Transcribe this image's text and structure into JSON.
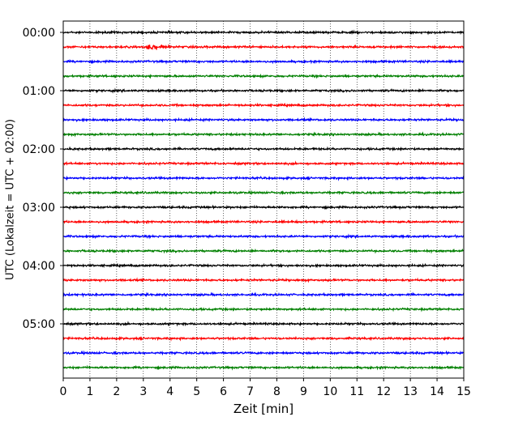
{
  "chart_data": {
    "type": "line",
    "title": "",
    "xlabel": "Zeit  [min]",
    "ylabel": "UTC (Lokalzeit = UTC + 02:00)",
    "xlim": [
      0,
      15
    ],
    "x_ticks": [
      0,
      1,
      2,
      3,
      4,
      5,
      6,
      7,
      8,
      9,
      10,
      11,
      12,
      13,
      14,
      15
    ],
    "y_ticks": [
      "00:00",
      "01:00",
      "02:00",
      "03:00",
      "04:00",
      "05:00"
    ],
    "grid": "vertical dotted",
    "trace_interval_min": 15,
    "trace_starts": [
      "00:00",
      "00:15",
      "00:30",
      "00:45",
      "01:00",
      "01:15",
      "01:30",
      "01:45",
      "02:00",
      "02:15",
      "02:30",
      "02:45",
      "03:00",
      "03:15",
      "03:30",
      "03:45",
      "04:00",
      "04:15",
      "04:30",
      "04:45",
      "05:00",
      "05:15",
      "05:30",
      "05:45"
    ],
    "trace_colors": [
      "#000000",
      "#ff0000",
      "#0000ff",
      "#008000"
    ],
    "events": [
      {
        "trace": "00:15",
        "minute": 3.15
      }
    ]
  }
}
